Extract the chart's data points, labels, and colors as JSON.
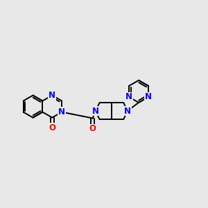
{
  "background_color": "#e8e8e8",
  "bond_color": "#000000",
  "N_color": "#0000ff",
  "O_color": "#ff0000",
  "font_size_atom": 8.5,
  "line_width": 1.4,
  "fig_width": 3.0,
  "fig_height": 3.0,
  "dpi": 100,
  "xlim": [
    0.0,
    1.0
  ],
  "ylim": [
    0.25,
    0.85
  ]
}
